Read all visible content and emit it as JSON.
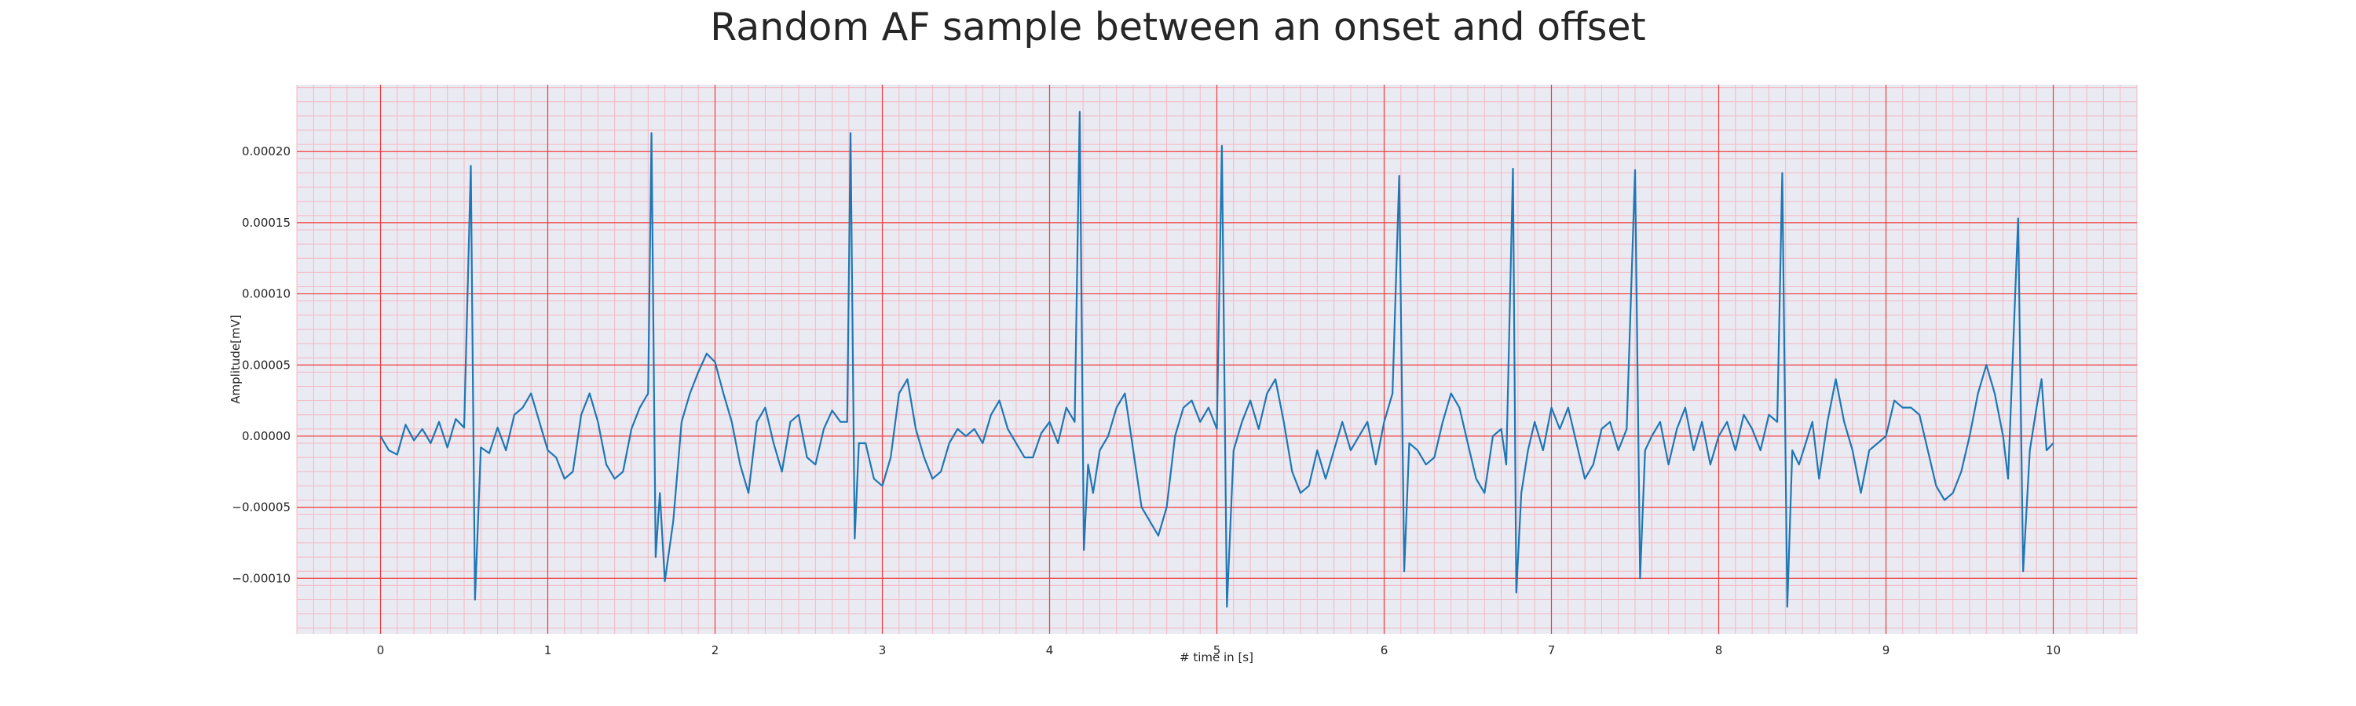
{
  "chart_data": {
    "type": "line",
    "title": "Random AF sample between an onset and offset",
    "xlabel": "# time in [s]",
    "ylabel": "Amplitude[mV]",
    "xlim": [
      -0.5,
      10.5
    ],
    "ylim": [
      -0.000139,
      0.000247
    ],
    "x_ticks": [
      0,
      1,
      2,
      3,
      4,
      5,
      6,
      7,
      8,
      9,
      10
    ],
    "x_tick_labels": [
      "0",
      "1",
      "2",
      "3",
      "4",
      "5",
      "6",
      "7",
      "8",
      "9",
      "10"
    ],
    "y_ticks": [
      -0.0001,
      -5e-05,
      0,
      5e-05,
      0.0001,
      0.00015,
      0.0002
    ],
    "y_tick_labels": [
      "−0.00010",
      "−0.00005",
      "0.00000",
      "0.00005",
      "0.00010",
      "0.00015",
      "0.00020"
    ],
    "grid": true,
    "series": [
      {
        "color": "#1f77b4",
        "points": [
          [
            0.0,
            0.0
          ],
          [
            0.05,
            -1e-05
          ],
          [
            0.1,
            -1.3e-05
          ],
          [
            0.15,
            8e-06
          ],
          [
            0.2,
            -3e-06
          ],
          [
            0.25,
            5e-06
          ],
          [
            0.3,
            -5e-06
          ],
          [
            0.35,
            1e-05
          ],
          [
            0.4,
            -8e-06
          ],
          [
            0.45,
            1.2e-05
          ],
          [
            0.5,
            6e-06
          ],
          [
            0.54,
            0.00019
          ],
          [
            0.565,
            -0.000115
          ],
          [
            0.6,
            -8e-06
          ],
          [
            0.65,
            -1.2e-05
          ],
          [
            0.7,
            6e-06
          ],
          [
            0.75,
            -1e-05
          ],
          [
            0.8,
            1.5e-05
          ],
          [
            0.85,
            2e-05
          ],
          [
            0.9,
            3e-05
          ],
          [
            0.95,
            1e-05
          ],
          [
            1.0,
            -1e-05
          ],
          [
            1.05,
            -1.5e-05
          ],
          [
            1.1,
            -3e-05
          ],
          [
            1.15,
            -2.5e-05
          ],
          [
            1.2,
            1.5e-05
          ],
          [
            1.25,
            3e-05
          ],
          [
            1.3,
            1e-05
          ],
          [
            1.35,
            -2e-05
          ],
          [
            1.4,
            -3e-05
          ],
          [
            1.45,
            -2.5e-05
          ],
          [
            1.5,
            5e-06
          ],
          [
            1.55,
            2e-05
          ],
          [
            1.6,
            3e-05
          ],
          [
            1.62,
            0.000213
          ],
          [
            1.645,
            -8.5e-05
          ],
          [
            1.67,
            -4e-05
          ],
          [
            1.7,
            -0.000102
          ],
          [
            1.75,
            -6e-05
          ],
          [
            1.8,
            1e-05
          ],
          [
            1.85,
            3e-05
          ],
          [
            1.9,
            4.5e-05
          ],
          [
            1.95,
            5.8e-05
          ],
          [
            2.0,
            5.2e-05
          ],
          [
            2.05,
            3e-05
          ],
          [
            2.1,
            1e-05
          ],
          [
            2.15,
            -2e-05
          ],
          [
            2.2,
            -4e-05
          ],
          [
            2.25,
            1e-05
          ],
          [
            2.3,
            2e-05
          ],
          [
            2.35,
            -5e-06
          ],
          [
            2.4,
            -2.5e-05
          ],
          [
            2.45,
            1e-05
          ],
          [
            2.5,
            1.5e-05
          ],
          [
            2.55,
            -1.5e-05
          ],
          [
            2.6,
            -2e-05
          ],
          [
            2.65,
            5e-06
          ],
          [
            2.7,
            1.8e-05
          ],
          [
            2.75,
            1e-05
          ],
          [
            2.79,
            1e-05
          ],
          [
            2.81,
            0.000213
          ],
          [
            2.835,
            -7.2e-05
          ],
          [
            2.86,
            -5e-06
          ],
          [
            2.9,
            -5e-06
          ],
          [
            2.95,
            -3e-05
          ],
          [
            3.0,
            -3.5e-05
          ],
          [
            3.05,
            -1.5e-05
          ],
          [
            3.1,
            3e-05
          ],
          [
            3.15,
            4e-05
          ],
          [
            3.2,
            5e-06
          ],
          [
            3.25,
            -1.5e-05
          ],
          [
            3.3,
            -3e-05
          ],
          [
            3.35,
            -2.5e-05
          ],
          [
            3.4,
            -5e-06
          ],
          [
            3.45,
            5e-06
          ],
          [
            3.5,
            0.0
          ],
          [
            3.55,
            5e-06
          ],
          [
            3.6,
            -5e-06
          ],
          [
            3.65,
            1.5e-05
          ],
          [
            3.7,
            2.5e-05
          ],
          [
            3.75,
            5e-06
          ],
          [
            3.8,
            -5e-06
          ],
          [
            3.85,
            -1.5e-05
          ],
          [
            3.9,
            -1.5e-05
          ],
          [
            3.95,
            2e-06
          ],
          [
            4.0,
            1e-05
          ],
          [
            4.05,
            -5e-06
          ],
          [
            4.1,
            2e-05
          ],
          [
            4.15,
            1e-05
          ],
          [
            4.18,
            0.000228
          ],
          [
            4.205,
            -8e-05
          ],
          [
            4.23,
            -2e-05
          ],
          [
            4.26,
            -4e-05
          ],
          [
            4.3,
            -1e-05
          ],
          [
            4.35,
            0.0
          ],
          [
            4.4,
            2e-05
          ],
          [
            4.45,
            3e-05
          ],
          [
            4.5,
            -1e-05
          ],
          [
            4.55,
            -5e-05
          ],
          [
            4.6,
            -6e-05
          ],
          [
            4.65,
            -7e-05
          ],
          [
            4.7,
            -5e-05
          ],
          [
            4.75,
            0.0
          ],
          [
            4.8,
            2e-05
          ],
          [
            4.85,
            2.5e-05
          ],
          [
            4.9,
            1e-05
          ],
          [
            4.95,
            2e-05
          ],
          [
            5.0,
            5e-06
          ],
          [
            5.03,
            0.000204
          ],
          [
            5.06,
            -0.00012
          ],
          [
            5.1,
            -1e-05
          ],
          [
            5.15,
            1e-05
          ],
          [
            5.2,
            2.5e-05
          ],
          [
            5.25,
            5e-06
          ],
          [
            5.3,
            3e-05
          ],
          [
            5.35,
            4e-05
          ],
          [
            5.4,
            1e-05
          ],
          [
            5.45,
            -2.5e-05
          ],
          [
            5.5,
            -4e-05
          ],
          [
            5.55,
            -3.5e-05
          ],
          [
            5.6,
            -1e-05
          ],
          [
            5.65,
            -3e-05
          ],
          [
            5.7,
            -1e-05
          ],
          [
            5.75,
            1e-05
          ],
          [
            5.8,
            -1e-05
          ],
          [
            5.85,
            0.0
          ],
          [
            5.9,
            1e-05
          ],
          [
            5.95,
            -2e-05
          ],
          [
            6.0,
            1e-05
          ],
          [
            6.05,
            3e-05
          ],
          [
            6.09,
            0.000183
          ],
          [
            6.12,
            -9.5e-05
          ],
          [
            6.15,
            -5e-06
          ],
          [
            6.2,
            -1e-05
          ],
          [
            6.25,
            -2e-05
          ],
          [
            6.3,
            -1.5e-05
          ],
          [
            6.35,
            1e-05
          ],
          [
            6.4,
            3e-05
          ],
          [
            6.45,
            2e-05
          ],
          [
            6.5,
            -5e-06
          ],
          [
            6.55,
            -3e-05
          ],
          [
            6.6,
            -4e-05
          ],
          [
            6.65,
            0.0
          ],
          [
            6.7,
            5e-06
          ],
          [
            6.73,
            -2e-05
          ],
          [
            6.77,
            0.000188
          ],
          [
            6.79,
            -0.00011
          ],
          [
            6.82,
            -4e-05
          ],
          [
            6.86,
            -1e-05
          ],
          [
            6.9,
            1e-05
          ],
          [
            6.95,
            -1e-05
          ],
          [
            7.0,
            2e-05
          ],
          [
            7.05,
            5e-06
          ],
          [
            7.1,
            2e-05
          ],
          [
            7.15,
            -5e-06
          ],
          [
            7.2,
            -3e-05
          ],
          [
            7.25,
            -2e-05
          ],
          [
            7.3,
            5e-06
          ],
          [
            7.35,
            1e-05
          ],
          [
            7.4,
            -1e-05
          ],
          [
            7.45,
            5e-06
          ],
          [
            7.5,
            0.000187
          ],
          [
            7.53,
            -0.0001
          ],
          [
            7.56,
            -1e-05
          ],
          [
            7.6,
            0.0
          ],
          [
            7.65,
            1e-05
          ],
          [
            7.7,
            -2e-05
          ],
          [
            7.75,
            5e-06
          ],
          [
            7.8,
            2e-05
          ],
          [
            7.85,
            -1e-05
          ],
          [
            7.9,
            1e-05
          ],
          [
            7.95,
            -2e-05
          ],
          [
            8.0,
            0.0
          ],
          [
            8.05,
            1e-05
          ],
          [
            8.1,
            -1e-05
          ],
          [
            8.15,
            1.5e-05
          ],
          [
            8.2,
            5e-06
          ],
          [
            8.25,
            -1e-05
          ],
          [
            8.3,
            1.5e-05
          ],
          [
            8.35,
            1e-05
          ],
          [
            8.38,
            0.000185
          ],
          [
            8.41,
            -0.00012
          ],
          [
            8.44,
            -1e-05
          ],
          [
            8.48,
            -2e-05
          ],
          [
            8.52,
            -5e-06
          ],
          [
            8.56,
            1e-05
          ],
          [
            8.6,
            -3e-05
          ],
          [
            8.65,
            1e-05
          ],
          [
            8.7,
            4e-05
          ],
          [
            8.75,
            1e-05
          ],
          [
            8.8,
            -1e-05
          ],
          [
            8.85,
            -4e-05
          ],
          [
            8.9,
            -1e-05
          ],
          [
            8.95,
            -5e-06
          ],
          [
            9.0,
            0.0
          ],
          [
            9.05,
            2.5e-05
          ],
          [
            9.1,
            2e-05
          ],
          [
            9.15,
            2e-05
          ],
          [
            9.2,
            1.5e-05
          ],
          [
            9.25,
            -1e-05
          ],
          [
            9.3,
            -3.5e-05
          ],
          [
            9.35,
            -4.5e-05
          ],
          [
            9.4,
            -4e-05
          ],
          [
            9.45,
            -2.5e-05
          ],
          [
            9.5,
            0.0
          ],
          [
            9.55,
            3e-05
          ],
          [
            9.6,
            5e-05
          ],
          [
            9.65,
            3e-05
          ],
          [
            9.7,
            0.0
          ],
          [
            9.73,
            -3e-05
          ],
          [
            9.79,
            0.000153
          ],
          [
            9.82,
            -9.5e-05
          ],
          [
            9.86,
            -1e-05
          ],
          [
            9.9,
            2e-05
          ],
          [
            9.93,
            4e-05
          ],
          [
            9.96,
            -1e-05
          ],
          [
            10.0,
            -5e-06
          ]
        ]
      }
    ]
  }
}
